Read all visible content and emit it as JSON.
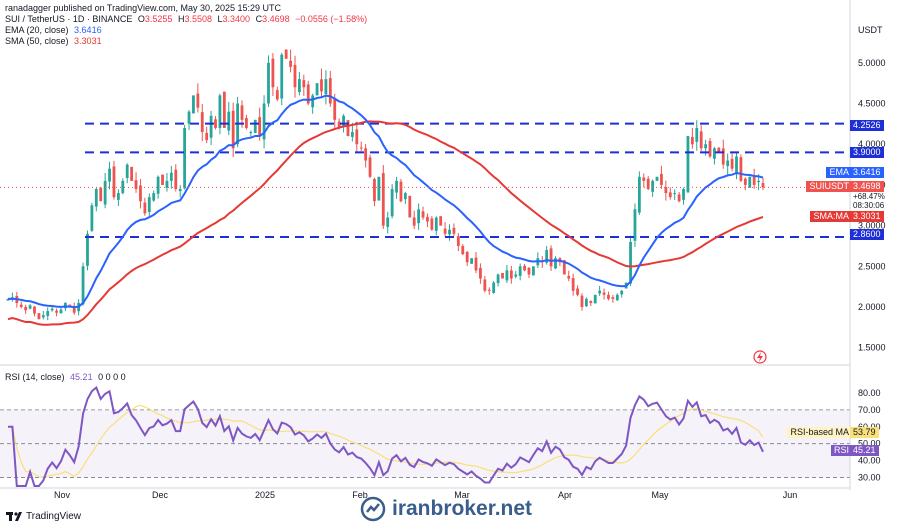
{
  "header": {
    "published": "ranadagger published on TradingView.com, May 30, 2025 15:29 UTC",
    "symbol": "SUI / TetherUS · 1D · BINANCE",
    "ohlc": {
      "o_label": "O",
      "o": "3.5255",
      "h_label": "H",
      "h": "3.5508",
      "l_label": "L",
      "l": "3.3400",
      "c_label": "C",
      "c": "3.4698",
      "chg": "−0.0556 (−1.58%)"
    },
    "ema_label": "EMA (20, close)",
    "ema_value": "3.6416",
    "sma_label": "SMA (50, close)",
    "sma_value": "3.3031",
    "rsi_label": "RSI (14, close)",
    "rsi_value": "45.21",
    "rsi_extra": "0 0 0 0"
  },
  "currency": "USDT",
  "colors": {
    "up": "#26a69a",
    "down": "#ef5350",
    "ema": "#2962ff",
    "sma": "#e53935",
    "rsi": "#7e57c2",
    "rsima": "#f9e07a",
    "level": "#1e2fd8"
  },
  "tags": {
    "r1": "4.2526",
    "r2": "3.9000",
    "ema": "EMA",
    "ema_v": "3.6416",
    "sym": "SUIUSDT",
    "sym_v": "3.4698",
    "pct": "+68.47%",
    "countdown": "08:30:06",
    "sma": "SMA:MA",
    "sma_v": "3.3031",
    "s1": "2.8600",
    "rsima": "RSI-based MA",
    "rsima_v": "53.79",
    "rsi": "RSI",
    "rsi_v": "45.21"
  },
  "footer": {
    "tv": "TradingView",
    "watermark": "iranbroker.net"
  },
  "chart_data": [
    {
      "type": "candlestick",
      "title": "SUI / TetherUS · 1D · BINANCE",
      "ylim": [
        1.3,
        5.6
      ],
      "price_ticks": [
        5.0,
        4.5,
        4.0,
        3.5,
        3.0,
        2.5,
        2.0,
        1.5
      ],
      "price_tick_labels": [
        "5.0000",
        "4.5000",
        "4.0000",
        "3.5000",
        "3.0000",
        "2.5000",
        "2.0000",
        "1.5000"
      ],
      "x_ticks": [
        "Nov",
        "Dec",
        "2025",
        "Feb",
        "Mar",
        "Apr",
        "May",
        "Jun"
      ],
      "horizontal_levels": [
        4.2526,
        3.9,
        2.86
      ],
      "close": [
        2.1,
        2.12,
        2.05,
        2.0,
        1.96,
        2.02,
        1.92,
        1.85,
        1.9,
        1.95,
        1.98,
        1.93,
        1.97,
        2.05,
        2.0,
        1.93,
        2.05,
        2.5,
        2.9,
        3.25,
        3.45,
        3.3,
        3.55,
        3.7,
        3.35,
        3.4,
        3.55,
        3.75,
        3.55,
        3.45,
        3.3,
        3.15,
        3.35,
        3.4,
        3.6,
        3.5,
        3.55,
        3.65,
        3.45,
        3.45,
        4.2,
        4.4,
        4.6,
        4.45,
        4.15,
        4.05,
        4.35,
        4.2,
        4.6,
        4.2,
        4.4,
        3.95,
        4.5,
        4.3,
        4.2,
        4.15,
        4.3,
        4.1,
        4.5,
        5.0,
        4.7,
        4.55,
        5.1,
        5.05,
        4.95,
        4.7,
        4.8,
        4.7,
        4.5,
        4.6,
        4.75,
        4.65,
        4.8,
        4.5,
        4.3,
        4.2,
        4.35,
        4.1,
        4.15,
        4.0,
        3.95,
        3.8,
        3.6,
        3.3,
        3.6,
        3.0,
        3.1,
        3.45,
        3.55,
        3.3,
        3.4,
        3.1,
        3.0,
        3.2,
        3.1,
        3.05,
        2.95,
        3.1,
        3.0,
        2.9,
        2.95,
        2.9,
        2.75,
        2.65,
        2.55,
        2.6,
        2.45,
        2.35,
        2.2,
        2.2,
        2.3,
        2.4,
        2.35,
        2.45,
        2.35,
        2.4,
        2.5,
        2.45,
        2.4,
        2.5,
        2.6,
        2.55,
        2.7,
        2.5,
        2.6,
        2.55,
        2.4,
        2.35,
        2.2,
        2.15,
        2.0,
        2.1,
        2.05,
        2.15,
        2.2,
        2.15,
        2.1,
        2.1,
        2.15,
        2.2,
        2.3,
        2.8,
        3.2,
        3.6,
        3.55,
        3.45,
        3.55,
        3.6,
        3.5,
        3.4,
        3.35,
        3.4,
        3.3,
        3.45,
        4.1,
        4.0,
        4.2,
        3.95,
        4.0,
        3.85,
        3.95,
        3.9,
        3.75,
        3.8,
        3.7,
        3.85,
        3.55,
        3.5,
        3.6,
        3.5,
        3.55,
        3.47
      ],
      "ema20_last": 3.6416,
      "sma50_last": 3.3031,
      "last": 3.4698
    },
    {
      "type": "line",
      "title": "RSI (14, close)",
      "ylim": [
        25,
        90
      ],
      "rsi_ticks": [
        80,
        70,
        60,
        50,
        40,
        30
      ],
      "rsi_tick_labels": [
        "80.00",
        "70.00",
        "60.00",
        "50.00",
        "40.00",
        "30.00"
      ],
      "bands": [
        70,
        50,
        30
      ],
      "rsi_last": 45.21,
      "rsi_ma_last": 53.79
    }
  ]
}
